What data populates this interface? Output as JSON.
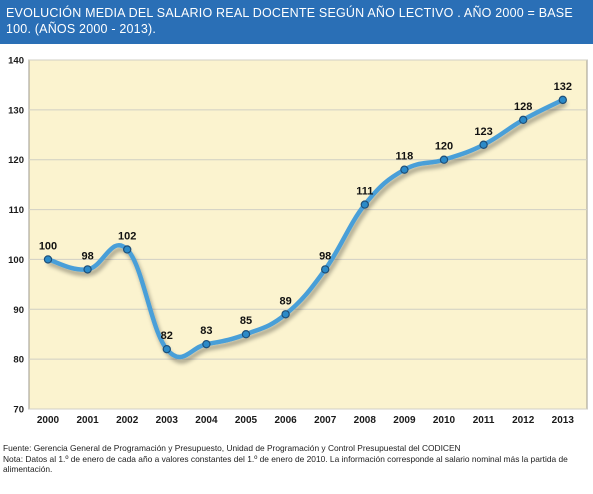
{
  "header": {
    "title": "EVOLUCIÓN MEDIA DEL SALARIO REAL DOCENTE SEGÚN AÑO LECTIVO . AÑO 2000 = BASE 100. (AÑOS 2000 - 2013)."
  },
  "footer": {
    "source": "Fuente: Gerencia General de Programación y Presupuesto, Unidad de Programación y Control Presupuestal del CODICEN",
    "note": "Nota: Datos al 1.º de enero de cada año a valores constantes del 1.º de enero de 2010. La información corresponde al salario nominal más la partida de alimentación."
  },
  "chart_data": {
    "type": "line",
    "title": "EVOLUCIÓN MEDIA DEL SALARIO REAL DOCENTE SEGÚN AÑO LECTIVO . AÑO 2000 = BASE 100. (AÑOS 2000 - 2013).",
    "xlabel": "",
    "ylabel": "",
    "categories": [
      "2000",
      "2001",
      "2002",
      "2003",
      "2004",
      "2005",
      "2006",
      "2007",
      "2008",
      "2009",
      "2010",
      "2011",
      "2012",
      "2013"
    ],
    "series": [
      {
        "values": [
          100,
          98,
          102,
          82,
          83,
          85,
          89,
          98,
          111,
          118,
          120,
          123,
          128,
          132
        ],
        "color": "#4a9fd8"
      }
    ],
    "data_labels": [
      "100",
      "98",
      "102",
      "82",
      "83",
      "85",
      "89",
      "98",
      "111",
      "118",
      "120",
      "123",
      "128",
      "132"
    ],
    "ylim": [
      70,
      140
    ],
    "yticks": [
      70,
      80,
      90,
      100,
      110,
      120,
      130,
      140
    ],
    "grid": "horizontal",
    "legend": "none",
    "colors": {
      "plot_background": "#fbf3cf",
      "gridline": "#d0cfc4",
      "marker_fill": "#2b8ac8",
      "marker_stroke": "#1e4f78"
    }
  }
}
